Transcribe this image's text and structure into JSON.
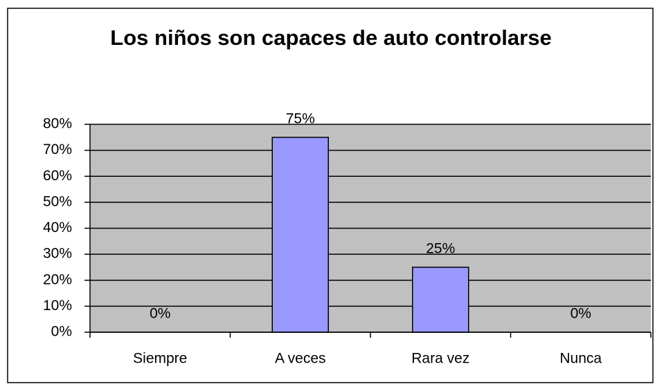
{
  "chart_data": {
    "type": "bar",
    "title": "Los niños son capaces  de auto controlarse",
    "categories": [
      "Siempre",
      "A veces",
      "Rara vez",
      "Nunca"
    ],
    "values": [
      0,
      75,
      25,
      0
    ],
    "value_labels": [
      "0%",
      "75%",
      "25%",
      "0%"
    ],
    "color": "#9999ff",
    "ylim": [
      0,
      80
    ],
    "yticks": [
      {
        "value": 0,
        "label": "0%"
      },
      {
        "value": 10,
        "label": "10%"
      },
      {
        "value": 20,
        "label": "20%"
      },
      {
        "value": 30,
        "label": "30%"
      },
      {
        "value": 40,
        "label": "40%"
      },
      {
        "value": 50,
        "label": "50%"
      },
      {
        "value": 60,
        "label": "60%"
      },
      {
        "value": 70,
        "label": "70%"
      },
      {
        "value": 80,
        "label": "80%"
      }
    ],
    "grid": true
  }
}
